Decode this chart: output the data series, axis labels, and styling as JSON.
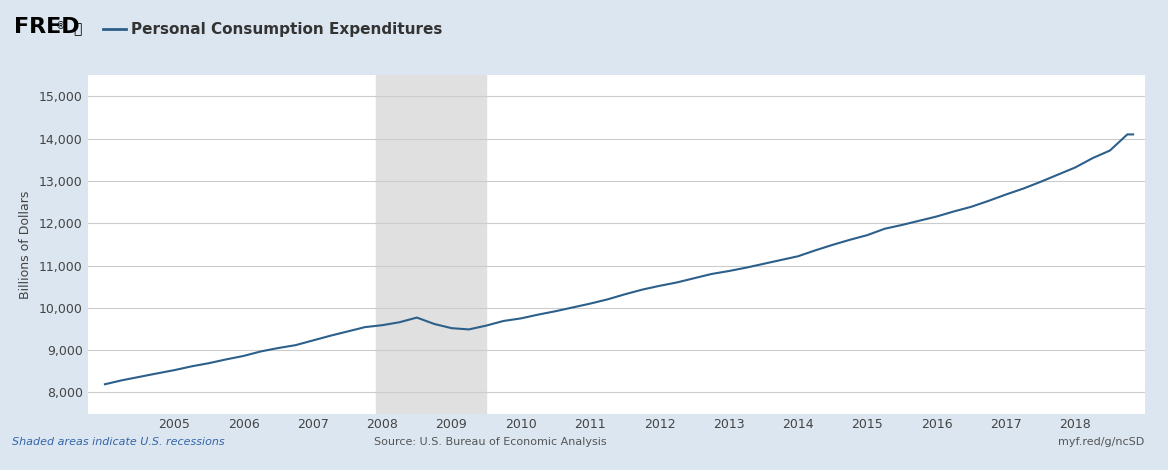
{
  "title": "Personal Consumption Expenditures",
  "ylabel": "Billions of Dollars",
  "line_color": "#2C5F8A",
  "background_color": "#dce6f0",
  "plot_background": "#ffffff",
  "recession_color": "#e0e0e0",
  "recession_start": 2007.917,
  "recession_end": 2009.5,
  "ylim": [
    7500,
    15500
  ],
  "xlim": [
    2003.75,
    2019.0
  ],
  "yticks": [
    8000,
    9000,
    10000,
    11000,
    12000,
    13000,
    14000,
    15000
  ],
  "xticks": [
    2005,
    2006,
    2007,
    2008,
    2009,
    2010,
    2011,
    2012,
    2013,
    2014,
    2015,
    2016,
    2017,
    2018
  ],
  "footer_left": "Shaded areas indicate U.S. recessions",
  "footer_center": "Source: U.S. Bureau of Economic Analysis",
  "footer_right": "myf.red/g/ncSD",
  "fred_text": "FRED",
  "legend_label": "— Personal Consumption Expenditures",
  "line_width": 1.5
}
